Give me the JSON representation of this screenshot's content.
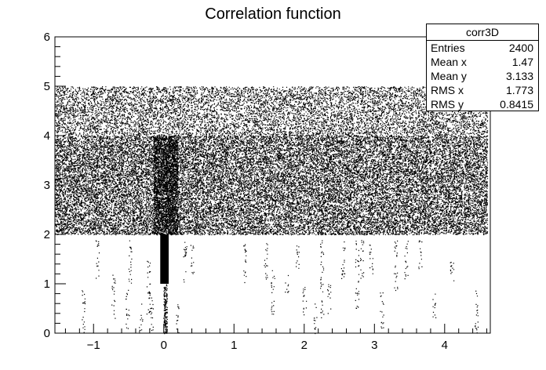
{
  "chart_data": {
    "type": "scatter",
    "title": "Correlation function",
    "xlabel": "",
    "ylabel": "",
    "xlim": [
      -1.55,
      4.65
    ],
    "ylim": [
      0,
      6
    ],
    "x_ticks": [
      "−1",
      "0",
      "1",
      "2",
      "3",
      "4"
    ],
    "y_ticks": [
      "0",
      "1",
      "2",
      "3",
      "4",
      "5",
      "6"
    ],
    "regions": [
      {
        "x": [
          -1.55,
          4.65
        ],
        "y": [
          4,
          5
        ],
        "density": "medium"
      },
      {
        "x": [
          -1.55,
          4.65
        ],
        "y": [
          2,
          4
        ],
        "density": "high"
      },
      {
        "x": [
          -1.55,
          4.65
        ],
        "y": [
          0,
          2
        ],
        "density": "sparse vertical streaks"
      },
      {
        "x": [
          -0.05,
          0.07
        ],
        "y": [
          1,
          2
        ],
        "density": "solid band"
      }
    ],
    "stats": {
      "name": "corr3D",
      "rows": [
        {
          "label": "Entries",
          "value": "2400"
        },
        {
          "label": "Mean x",
          "value": "1.47"
        },
        {
          "label": "Mean y",
          "value": "3.133"
        },
        {
          "label": "RMS x",
          "value": "1.773"
        },
        {
          "label": "RMS y",
          "value": "0.8415"
        }
      ]
    }
  }
}
